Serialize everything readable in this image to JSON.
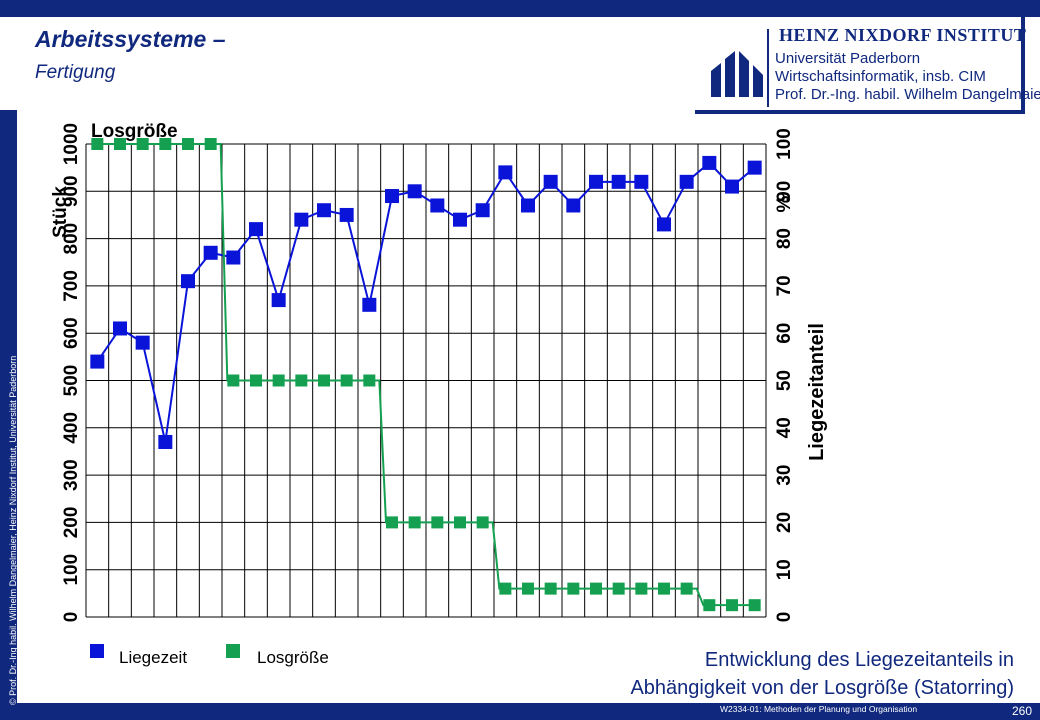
{
  "header": {
    "title": "Arbeitssysteme –",
    "subtitle": "Fertigung"
  },
  "logo": {
    "institute": "HEINZ NIXDORF INSTITUT",
    "line1": "Universität Paderborn",
    "line2": "Wirtschaftsinformatik, insb. CIM",
    "line3": "Prof. Dr.-Ing. habil. Wilhelm Dangelmaier"
  },
  "side_copyright": "© Prof. Dr.-Ing habil. Wilhelm Dangelmaier, Heinz Nixdorf Institut, Universität Paderborn",
  "footer": {
    "course": "W2334-01: Methoden der Planung und Organisation",
    "page": "260"
  },
  "caption": {
    "line1": "Entwicklung des Liegezeitanteils in",
    "line2": "Abhängigkeit von der Losgröße (Statorring)"
  },
  "colors": {
    "brand": "#10287d",
    "liegezeit": "#0a14d8",
    "losgroesse": "#14a050",
    "grid": "#000000"
  },
  "chart_data": {
    "type": "line",
    "chart_label": "Losgröße",
    "left_axis": {
      "label": "Stück",
      "range": [
        0,
        1000
      ],
      "ticks": [
        "0",
        "100",
        "200",
        "300",
        "400",
        "500",
        "600",
        "700",
        "800",
        "900",
        "1000"
      ]
    },
    "right_axis": {
      "label": "Liegezeitanteil",
      "unit": "%",
      "range": [
        0,
        100
      ],
      "ticks": [
        "0",
        "10",
        "20",
        "30",
        "40",
        "50",
        "60",
        "70",
        "80",
        "90",
        "100"
      ]
    },
    "grid": true,
    "legend_position": "bottom-left",
    "x": [
      1,
      2,
      3,
      4,
      5,
      6,
      7,
      8,
      9,
      10,
      11,
      12,
      13,
      14,
      15,
      16,
      17,
      18,
      19,
      20,
      21,
      22,
      23,
      24,
      25,
      26,
      27,
      28,
      29,
      30
    ],
    "series": [
      {
        "name": "Liegezeit",
        "axis": "right",
        "values": [
          54,
          61,
          58,
          37,
          71,
          77,
          76,
          82,
          67,
          84,
          86,
          85,
          66,
          89,
          90,
          87,
          84,
          86,
          94,
          87,
          92,
          87,
          92,
          92,
          92,
          83,
          92,
          96,
          91,
          95
        ]
      },
      {
        "name": "Losgröße",
        "axis": "left",
        "values": [
          1000,
          1000,
          1000,
          1000,
          1000,
          1000,
          500,
          500,
          500,
          500,
          500,
          500,
          500,
          200,
          200,
          200,
          200,
          200,
          60,
          60,
          60,
          60,
          60,
          60,
          60,
          60,
          60,
          25,
          25,
          25
        ]
      }
    ]
  }
}
